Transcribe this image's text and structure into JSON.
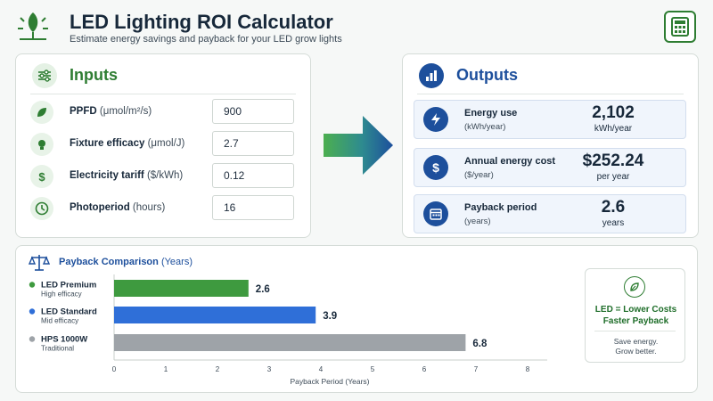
{
  "header": {
    "title": "LED Lighting ROI Calculator",
    "subtitle": "Estimate energy savings and payback for your LED grow lights",
    "calculator_icon": "calculator-icon",
    "logo_icon": "plant-bulb-icon"
  },
  "inputs": {
    "title": "Inputs",
    "icon": "sliders-icon",
    "rows": [
      {
        "label": "PPFD",
        "unit": "(μmol/m²/s)",
        "value": "900",
        "icon": "leaf-icon"
      },
      {
        "label": "Fixture efficacy",
        "unit": "(μmol/J)",
        "value": "2.7",
        "icon": "bulb-icon"
      },
      {
        "label": "Electricity tariff",
        "unit": "($/kWh)",
        "value": "0.12",
        "icon": "dollar-icon"
      },
      {
        "label": "Photoperiod",
        "unit": "(hours)",
        "value": "16",
        "icon": "clock-icon"
      }
    ]
  },
  "outputs": {
    "title": "Outputs",
    "icon": "bar-chart-icon",
    "cards": [
      {
        "label": "Energy use",
        "unit": "(kWh/year)",
        "value": "2,102",
        "sub": "kWh/year",
        "icon": "lightning-icon"
      },
      {
        "label": "Annual energy cost",
        "unit": "($/year)",
        "value": "$252.24",
        "sub": "per year",
        "icon": "dollar-icon"
      },
      {
        "label": "Payback period",
        "unit": "(years)",
        "value": "2.6",
        "sub": "years",
        "icon": "calendar-icon"
      }
    ]
  },
  "chart": {
    "title_bold": "Payback Comparison",
    "title_unit": "(Years)",
    "icon": "balance-scale-icon"
  },
  "chart_data": {
    "type": "bar",
    "orientation": "horizontal",
    "categories": [
      "LED Premium",
      "LED Standard",
      "HPS 1000W"
    ],
    "category_sublabels": [
      "High efficacy",
      "Mid efficacy",
      "Traditional"
    ],
    "values": [
      2.6,
      3.9,
      6.8
    ],
    "value_labels": [
      "2.6",
      "3.9",
      "6.8"
    ],
    "colors": [
      "#3e9a3f",
      "#2f6fd8",
      "#9ea3a8"
    ],
    "xlabel": "Payback Period (Years)",
    "xlim": [
      0,
      8
    ],
    "xticks": [
      0,
      1,
      2,
      3,
      4,
      5,
      6,
      7,
      8
    ],
    "grid": false
  },
  "badge": {
    "icon": "leaf-circle-icon",
    "line1": "LED = Lower Costs",
    "line2": "Faster Payback",
    "tag1": "Save energy.",
    "tag2": "Grow better."
  },
  "colors": {
    "green": "#2e7d32",
    "blue": "#1d4f9c"
  }
}
